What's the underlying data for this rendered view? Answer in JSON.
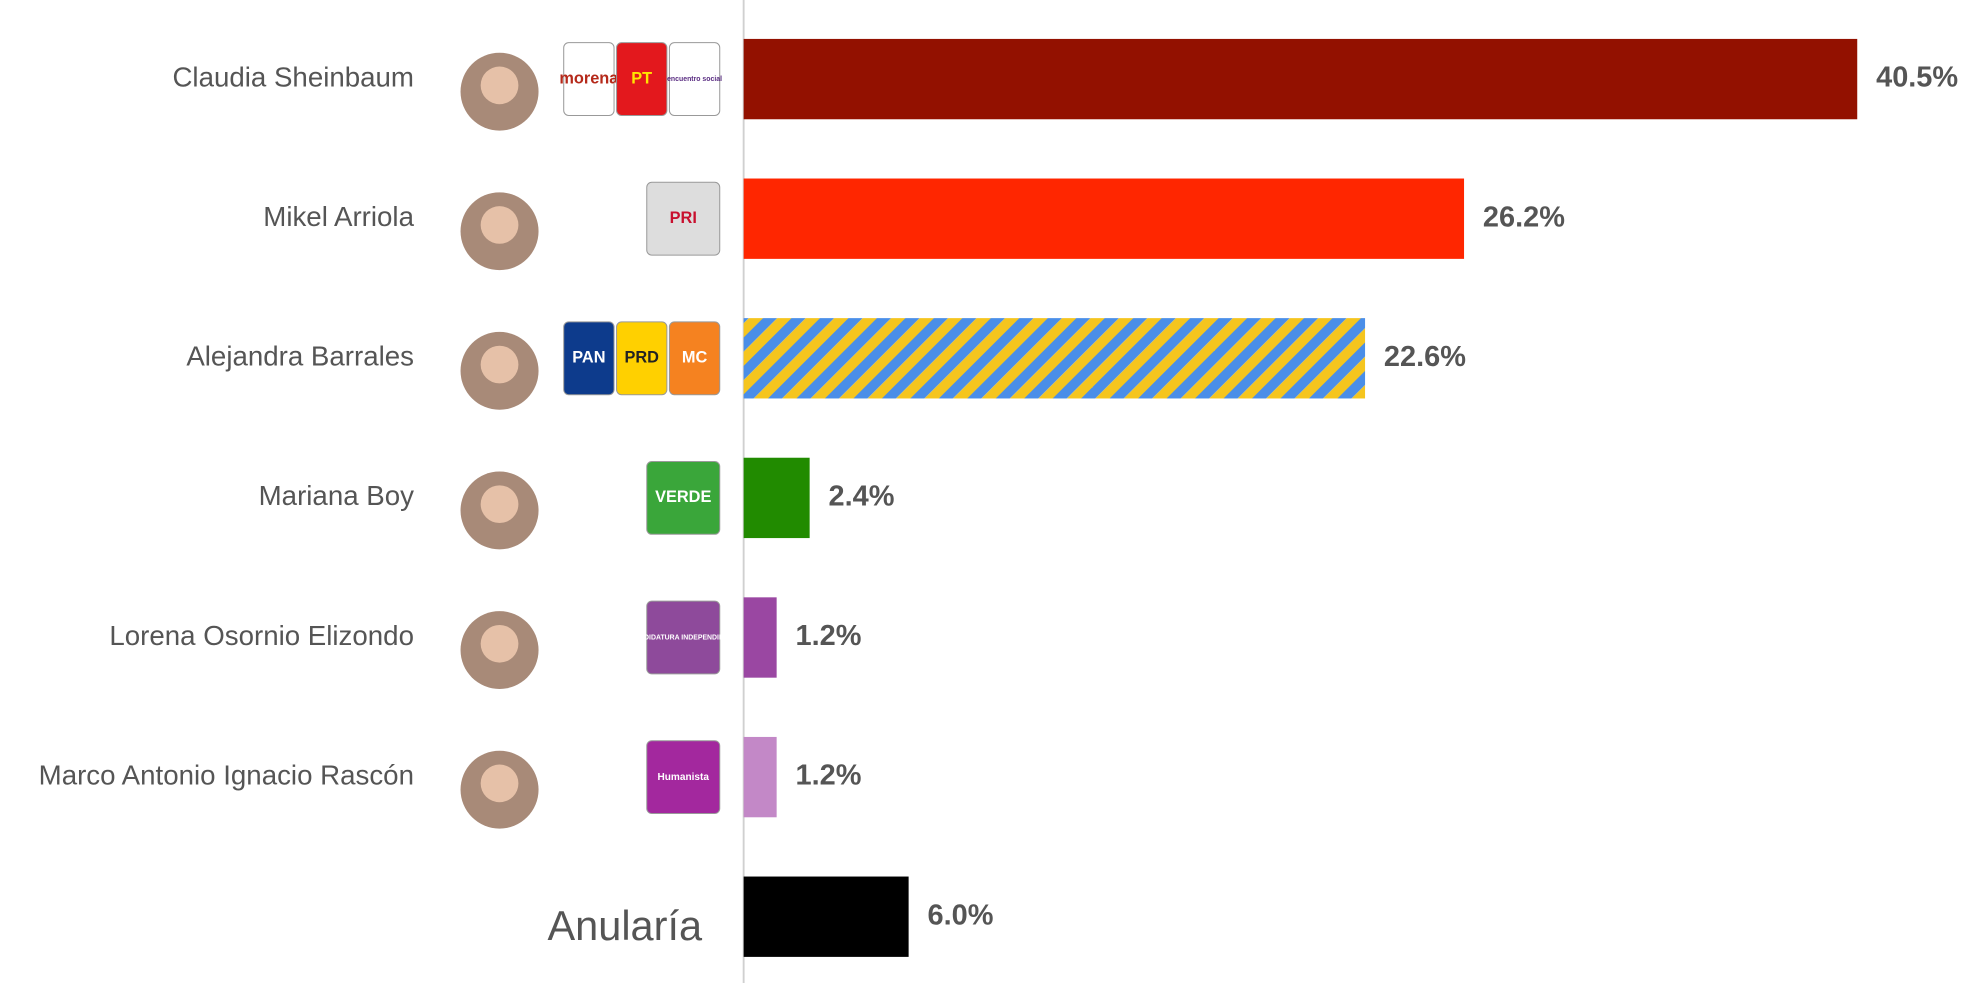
{
  "chart_data": {
    "type": "bar",
    "categories": [
      "Claudia Sheinbaum",
      "Mikel Arriola",
      "Alejandra Barrales",
      "Mariana Boy",
      "Lorena Osornio Elizondo",
      "Marco Antonio Ignacio Rascón",
      "Anularía"
    ],
    "values": [
      40.5,
      26.2,
      22.6,
      2.4,
      1.2,
      1.2,
      6.0
    ],
    "value_labels": [
      "40.5%",
      "26.2%",
      "22.6%",
      "2.4%",
      "1.2%",
      "1.2%",
      "6.0%"
    ],
    "colors": [
      "#931100",
      "#ff2600",
      [
        "#4a8ee8",
        "#f5c51e"
      ],
      "#218b00",
      "#9a47a2",
      "#c388c7",
      "#000000"
    ],
    "party_logos": [
      [
        "morena",
        "PT",
        "encuentro social"
      ],
      [
        "PRI"
      ],
      [
        "PAN",
        "PRD",
        "MC"
      ],
      [
        "VERDE"
      ],
      [
        "CANDIDATURA INDEPENDIENTE"
      ],
      [
        "Humanista"
      ],
      []
    ]
  }
}
